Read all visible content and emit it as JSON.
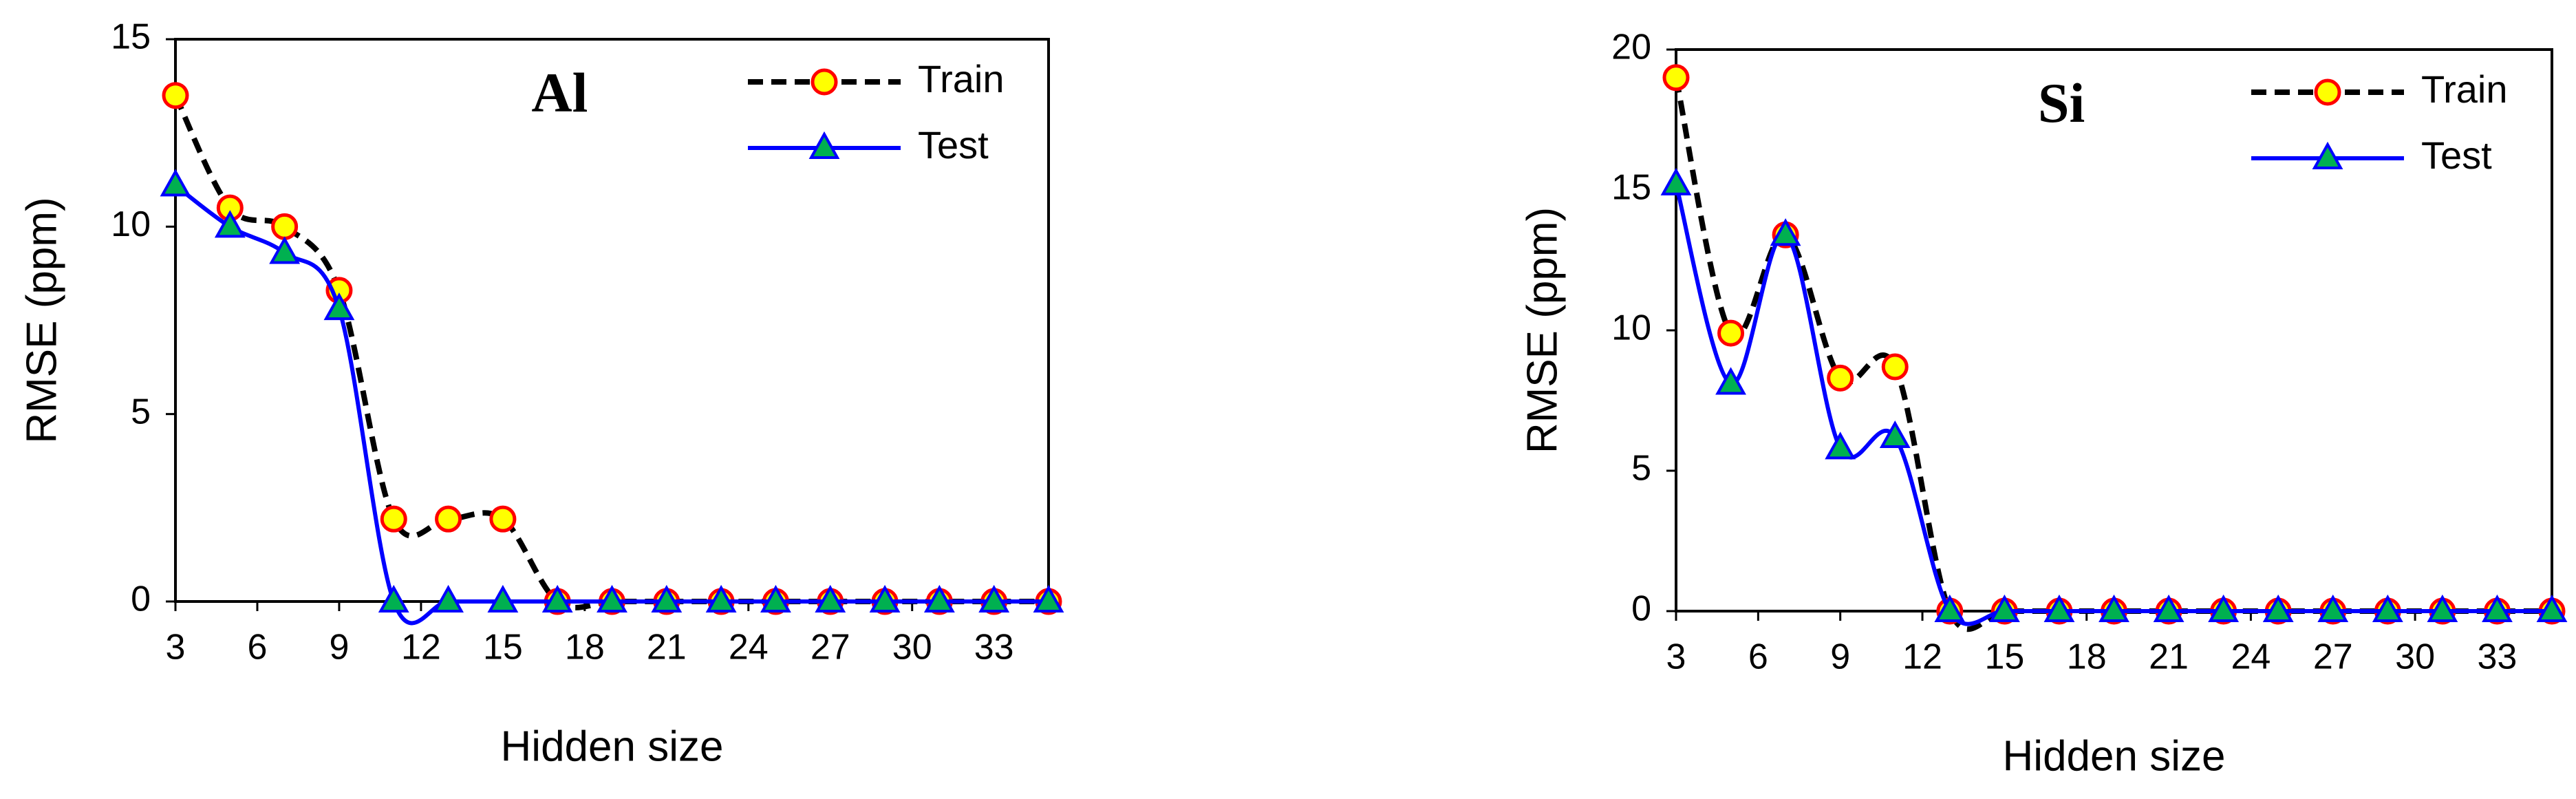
{
  "chart_data": [
    {
      "type": "line",
      "title": "Al",
      "xlabel": "Hidden size",
      "ylabel": "RMSE (ppm)",
      "x": [
        3,
        5,
        7,
        9,
        11,
        13,
        15,
        17,
        19,
        21,
        23,
        25,
        27,
        29,
        31,
        33,
        35
      ],
      "series": [
        {
          "name": "Train",
          "color": "#000000",
          "marker_fill": "#ffff00",
          "marker_edge": "#ff0000",
          "values": [
            13.5,
            10.5,
            10,
            8.3,
            2.2,
            2.2,
            2.2,
            0,
            0,
            0,
            0,
            0,
            0,
            0,
            0,
            0,
            0
          ]
        },
        {
          "name": "Test",
          "color": "#0000ff",
          "marker_fill": "#00b050",
          "marker_edge": "#0000ff",
          "values": [
            11.1,
            10,
            9.3,
            7.8,
            0,
            0,
            0,
            0,
            0,
            0,
            0,
            0,
            0,
            0,
            0,
            0,
            0
          ]
        }
      ],
      "xlim": [
        3,
        35
      ],
      "ylim": [
        0,
        15
      ],
      "xticks": [
        3,
        6,
        9,
        12,
        15,
        18,
        21,
        24,
        27,
        30,
        33
      ],
      "yticks": [
        0,
        5,
        10,
        15
      ]
    },
    {
      "type": "line",
      "title": "Si",
      "xlabel": "Hidden size",
      "ylabel": "RMSE (ppm)",
      "x": [
        3,
        5,
        7,
        9,
        11,
        13,
        15,
        17,
        19,
        21,
        23,
        25,
        27,
        29,
        31,
        33,
        35
      ],
      "series": [
        {
          "name": "Train",
          "color": "#000000",
          "marker_fill": "#ffff00",
          "marker_edge": "#ff0000",
          "values": [
            19,
            9.9,
            13.4,
            8.3,
            8.7,
            0,
            0,
            0,
            0,
            0,
            0,
            0,
            0,
            0,
            0,
            0,
            0
          ]
        },
        {
          "name": "Test",
          "color": "#0000ff",
          "marker_fill": "#00b050",
          "marker_edge": "#0000ff",
          "values": [
            15.2,
            8.1,
            13.4,
            5.8,
            6.2,
            0,
            0,
            0,
            0,
            0,
            0,
            0,
            0,
            0,
            0,
            0,
            0
          ]
        }
      ],
      "xlim": [
        3,
        35
      ],
      "ylim": [
        0,
        20
      ],
      "xticks": [
        3,
        6,
        9,
        12,
        15,
        18,
        21,
        24,
        27,
        30,
        33
      ],
      "yticks": [
        0,
        5,
        10,
        15,
        20
      ]
    }
  ]
}
